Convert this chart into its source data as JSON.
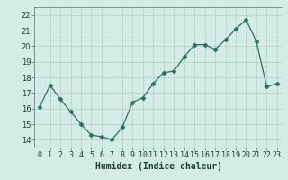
{
  "x": [
    0,
    1,
    2,
    3,
    4,
    5,
    6,
    7,
    8,
    9,
    10,
    11,
    12,
    13,
    14,
    15,
    16,
    17,
    18,
    19,
    20,
    21,
    22,
    23
  ],
  "y": [
    16.1,
    17.5,
    16.6,
    15.8,
    15.0,
    14.3,
    14.2,
    14.0,
    14.8,
    16.4,
    16.7,
    17.6,
    18.3,
    18.4,
    19.3,
    20.1,
    20.1,
    19.8,
    20.4,
    21.1,
    21.7,
    20.3,
    17.4,
    17.6
  ],
  "xlabel": "Humidex (Indice chaleur)",
  "ylim": [
    13.5,
    22.5
  ],
  "yticks": [
    14,
    15,
    16,
    17,
    18,
    19,
    20,
    21,
    22
  ],
  "xlim": [
    -0.5,
    23.5
  ],
  "xtick_labels": [
    "0",
    "1",
    "2",
    "3",
    "4",
    "5",
    "6",
    "7",
    "8",
    "9",
    "10",
    "11",
    "12",
    "13",
    "14",
    "15",
    "16",
    "17",
    "18",
    "19",
    "20",
    "21",
    "22",
    "23"
  ],
  "line_color": "#2a6e62",
  "marker": "D",
  "marker_size": 2.5,
  "bg_color": "#d4ece6",
  "grid_color": "#b0d0cc",
  "font_color": "#1a3a35",
  "tick_fontsize": 6,
  "xlabel_fontsize": 7,
  "linewidth": 0.9
}
